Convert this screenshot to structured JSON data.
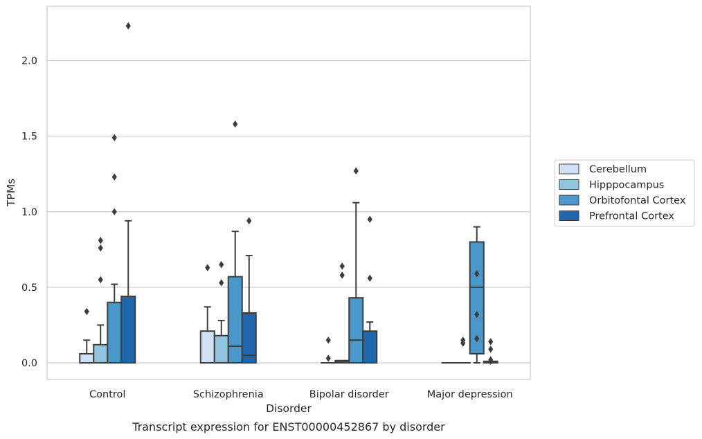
{
  "chart_data": {
    "type": "box",
    "caption": "Transcript expression for ENST00000452867 by disorder",
    "xlabel": "Disorder",
    "ylabel": "TPMs",
    "ylim": [
      -0.11,
      2.36
    ],
    "yticks": [
      "0.0",
      "0.5",
      "1.0",
      "1.5",
      "2.0"
    ],
    "grid": "horizontal",
    "legend_position": "right",
    "categories": [
      "Control",
      "Schizophrenia",
      "Bipolar disorder",
      "Major depression"
    ],
    "series": [
      {
        "name": "Cerebellum",
        "color": "#cfe1f2",
        "boxes": [
          {
            "q1": 0.0,
            "median": 0.0,
            "q3": 0.06,
            "whisker_low": 0.0,
            "whisker_high": 0.15,
            "outliers": [
              0.34
            ]
          },
          {
            "q1": 0.0,
            "median": 0.0,
            "q3": 0.21,
            "whisker_low": 0.0,
            "whisker_high": 0.37,
            "outliers": [
              0.63
            ]
          },
          {
            "q1": 0.0,
            "median": 0.0,
            "q3": 0.0,
            "whisker_low": 0.0,
            "whisker_high": 0.0,
            "outliers": [
              0.03,
              0.15
            ]
          },
          {
            "q1": 0.0,
            "median": 0.0,
            "q3": 0.0,
            "whisker_low": 0.0,
            "whisker_high": 0.0,
            "outliers": []
          }
        ]
      },
      {
        "name": "Hipppocampus",
        "color": "#93c4de",
        "boxes": [
          {
            "q1": 0.0,
            "median": 0.0,
            "q3": 0.12,
            "whisker_low": 0.0,
            "whisker_high": 0.25,
            "outliers": [
              0.55,
              0.76,
              0.81
            ]
          },
          {
            "q1": 0.0,
            "median": 0.0,
            "q3": 0.18,
            "whisker_low": 0.0,
            "whisker_high": 0.28,
            "outliers": [
              0.53,
              0.65
            ]
          },
          {
            "q1": 0.0,
            "median": 0.01,
            "q3": 0.015,
            "whisker_low": 0.0,
            "whisker_high": 0.015,
            "outliers": [
              0.58,
              0.64
            ]
          },
          {
            "q1": 0.0,
            "median": 0.0,
            "q3": 0.0,
            "whisker_low": 0.0,
            "whisker_high": 0.0,
            "outliers": [
              0.13,
              0.15
            ]
          }
        ]
      },
      {
        "name": "Orbitofontal Cortex",
        "color": "#4a98c9",
        "boxes": [
          {
            "q1": 0.0,
            "median": 0.0,
            "q3": 0.4,
            "whisker_low": 0.0,
            "whisker_high": 0.52,
            "outliers": [
              1.0,
              1.23,
              1.49
            ]
          },
          {
            "q1": 0.0,
            "median": 0.11,
            "q3": 0.57,
            "whisker_low": 0.0,
            "whisker_high": 0.87,
            "outliers": [
              1.58
            ]
          },
          {
            "q1": 0.0,
            "median": 0.15,
            "q3": 0.43,
            "whisker_low": 0.0,
            "whisker_high": 1.06,
            "outliers": [
              1.27
            ]
          },
          {
            "q1": 0.06,
            "median": 0.5,
            "q3": 0.8,
            "whisker_low": 0.0,
            "whisker_high": 0.9,
            "outliers": [
              0.16,
              0.32,
              0.59
            ]
          }
        ]
      },
      {
        "name": "Prefrontal Cortex",
        "color": "#2066ac",
        "boxes": [
          {
            "q1": 0.0,
            "median": 0.0,
            "q3": 0.44,
            "whisker_low": 0.0,
            "whisker_high": 0.94,
            "outliers": [
              2.23
            ]
          },
          {
            "q1": 0.0,
            "median": 0.05,
            "q3": 0.33,
            "whisker_low": 0.0,
            "whisker_high": 0.71,
            "outliers": [
              0.94
            ]
          },
          {
            "q1": 0.0,
            "median": 0.0,
            "q3": 0.21,
            "whisker_low": 0.0,
            "whisker_high": 0.27,
            "outliers": [
              0.56,
              0.95
            ]
          },
          {
            "q1": 0.0,
            "median": 0.0,
            "q3": 0.01,
            "whisker_low": 0.0,
            "whisker_high": 0.01,
            "outliers": [
              0.01,
              0.02,
              0.09,
              0.14
            ]
          }
        ]
      }
    ]
  }
}
